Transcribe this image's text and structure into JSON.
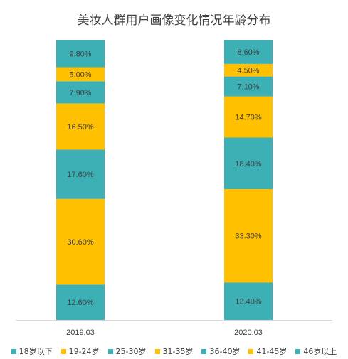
{
  "chart_data": {
    "type": "bar",
    "stacked": true,
    "stack_unit": "percent",
    "title": "美妆人群用户画像变化情况年龄分布",
    "categories": [
      "2019.03",
      "2020.03"
    ],
    "ylim": [
      0,
      100
    ],
    "grid": false,
    "legend_position": "bottom",
    "series": [
      {
        "name": "18岁以下",
        "color": "#3CB0B4",
        "values": [
          12.6,
          13.4
        ],
        "labels": [
          "12.60%",
          "13.40%"
        ]
      },
      {
        "name": "19-24岁",
        "color": "#FFC000",
        "values": [
          30.6,
          33.3
        ],
        "labels": [
          "30.60%",
          "33.30%"
        ]
      },
      {
        "name": "25-30岁",
        "color": "#3CB0B4",
        "values": [
          17.6,
          18.4
        ],
        "labels": [
          "17.60%",
          "18.40%"
        ]
      },
      {
        "name": "31-35岁",
        "color": "#FFC000",
        "values": [
          16.5,
          14.7
        ],
        "labels": [
          "16.50%",
          "14.70%"
        ]
      },
      {
        "name": "36-40岁",
        "color": "#3CB0B4",
        "values": [
          7.9,
          7.1
        ],
        "labels": [
          "7.90%",
          "7.10%"
        ]
      },
      {
        "name": "41-45岁",
        "color": "#FFC000",
        "values": [
          5.0,
          4.5
        ],
        "labels": [
          "5.00%",
          "4.50%"
        ]
      },
      {
        "name": "46岁以上",
        "color": "#3CB0B4",
        "values": [
          9.8,
          8.6
        ],
        "labels": [
          "9.80%",
          "8.60%"
        ]
      }
    ]
  }
}
